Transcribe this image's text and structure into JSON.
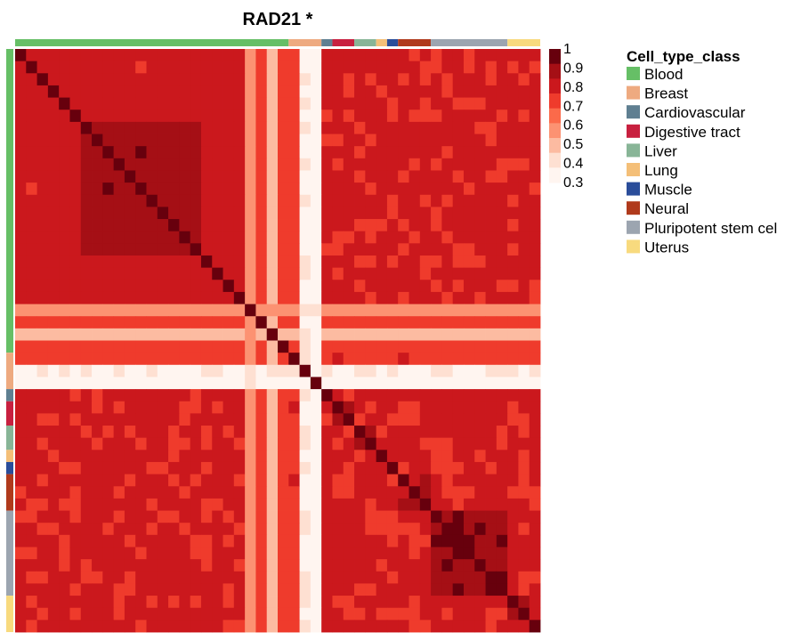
{
  "chart_data": {
    "type": "heatmap",
    "title": "RAD21 *",
    "value_range": [
      0.3,
      1.0
    ],
    "colorbar": {
      "ticks": [
        "1",
        "0.9",
        "0.8",
        "0.7",
        "0.6",
        "0.5",
        "0.4",
        "0.3"
      ],
      "colors": [
        "#fff5f0",
        "#fee0d2",
        "#fcbba1",
        "#fc9272",
        "#fb6a4a",
        "#ef3b2c",
        "#cb181d",
        "#a50f15",
        "#67000d"
      ]
    },
    "legend": {
      "title": "Cell_type_class",
      "placement": "right",
      "entries": [
        {
          "label": "Blood",
          "color": "#66bf66"
        },
        {
          "label": "Breast",
          "color": "#eeaa80"
        },
        {
          "label": "Cardiovascular",
          "color": "#5f7f91"
        },
        {
          "label": "Digestive tract",
          "color": "#c8203f"
        },
        {
          "label": "Liver",
          "color": "#88b597"
        },
        {
          "label": "Lung",
          "color": "#f4bf78"
        },
        {
          "label": "Muscle",
          "color": "#2a4d9a"
        },
        {
          "label": "Neural",
          "color": "#b03a1c"
        },
        {
          "label": "Pluripotent stem cel",
          "color": "#9ca5b0"
        },
        {
          "label": "Uterus",
          "color": "#f8da7e"
        }
      ]
    },
    "annotation_groups": [
      {
        "class": "Blood",
        "count": 25
      },
      {
        "class": "Breast",
        "count": 3
      },
      {
        "class": "Cardiovascular",
        "count": 1
      },
      {
        "class": "Digestive tract",
        "count": 2
      },
      {
        "class": "Liver",
        "count": 2
      },
      {
        "class": "Lung",
        "count": 1
      },
      {
        "class": "Muscle",
        "count": 1
      },
      {
        "class": "Neural",
        "count": 3
      },
      {
        "class": "Pluripotent stem cel",
        "count": 7
      },
      {
        "class": "Uterus",
        "count": 3
      }
    ],
    "matrix_size": 48,
    "blocks": {
      "blood_core": 0.92,
      "blood_background": 0.82,
      "low_samples": [
        {
          "index": 21,
          "level": 0.58
        },
        {
          "index": 23,
          "level": 0.48
        },
        {
          "index": 26,
          "level": 0.34
        },
        {
          "index": 27,
          "level": 0.3
        }
      ],
      "mid_samples": [
        {
          "index": 22,
          "level": 0.72
        },
        {
          "index": 24,
          "level": 0.75
        },
        {
          "index": 25,
          "level": 0.76
        }
      ],
      "pluripotent_core": 0.93,
      "other_background": 0.8
    }
  }
}
